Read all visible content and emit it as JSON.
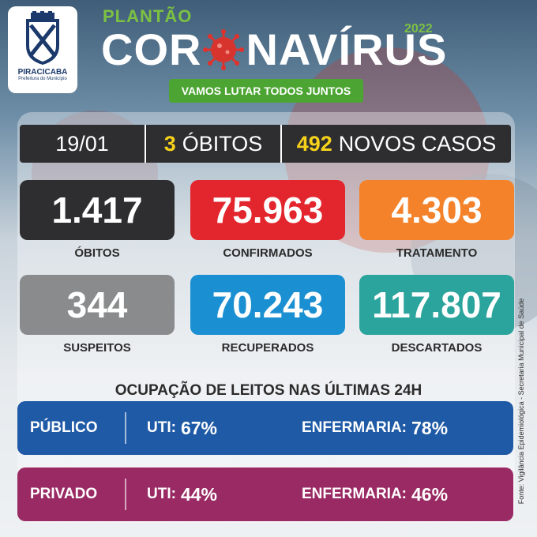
{
  "header": {
    "logo_city": "PIRACICABA",
    "logo_sub": "Prefeitura do Município",
    "kicker": "PLANTÃO",
    "year": "2022",
    "title_part1": "COR",
    "title_part2": "NAVÍRUS",
    "slogan": "VAMOS LUTAR TODOS JUNTOS",
    "colors": {
      "green": "#7cc142",
      "slogan_bg": "#4ca533",
      "virus": "#e0322d"
    }
  },
  "daily": {
    "date": "19/01",
    "deaths_value": "3",
    "deaths_label": "ÓBITOS",
    "cases_value": "492",
    "cases_label": "NOVOS CASOS"
  },
  "stats": [
    {
      "value": "1.417",
      "label": "ÓBITOS",
      "color": "#2e2e30"
    },
    {
      "value": "75.963",
      "label": "CONFIRMADOS",
      "color": "#e3262d"
    },
    {
      "value": "4.303",
      "label": "TRATAMENTO",
      "color": "#f4822a"
    },
    {
      "value": "344",
      "label": "SUSPEITOS",
      "color": "#8a8b8d"
    },
    {
      "value": "70.243",
      "label": "RECUPERADOS",
      "color": "#1a8fd1"
    },
    {
      "value": "117.807",
      "label": "DESCARTADOS",
      "color": "#2aa49c"
    }
  ],
  "occupancy": {
    "title": "OCUPAÇÃO DE LEITOS NAS ÚLTIMAS 24H",
    "rows": [
      {
        "category": "PÚBLICO",
        "uti_label": "UTI:",
        "uti_value": "67%",
        "enf_label": "ENFERMARIA:",
        "enf_value": "78%",
        "color": "#1f5aa6"
      },
      {
        "category": "PRIVADO",
        "uti_label": "UTI:",
        "uti_value": "44%",
        "enf_label": "ENFERMARIA:",
        "enf_value": "46%",
        "color": "#9a2a63"
      }
    ]
  },
  "source": "Fonte: Vigilância Epidemiológica - Secretaria Municipal de Saúde"
}
